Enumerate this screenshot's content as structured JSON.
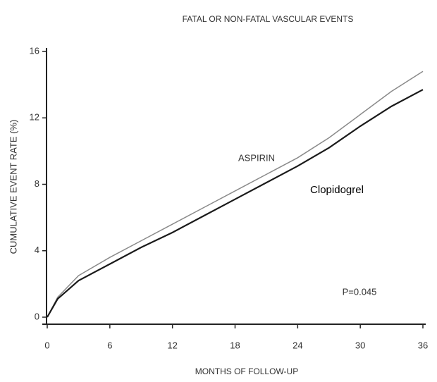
{
  "chart_data": {
    "type": "line",
    "title": "FATAL OR NON-FATAL VASCULAR EVENTS",
    "x_label": "MONTHS OF FOLLOW-UP",
    "y_label": "CUMULATIVE EVENT RATE (%)",
    "annotations": [
      "ASPIRIN",
      "Clopidogrel",
      "P=0.045"
    ],
    "x": [
      0,
      1,
      3,
      6,
      9,
      12,
      15,
      18,
      21,
      24,
      27,
      30,
      33,
      36
    ],
    "series": [
      {
        "name": "ASPIRIN",
        "color": "#8a8a8a",
        "values": [
          0,
          1.2,
          2.5,
          3.6,
          4.6,
          5.6,
          6.6,
          7.6,
          8.6,
          9.6,
          10.8,
          12.2,
          13.6,
          14.8
        ]
      },
      {
        "name": "Clopidogrel",
        "color": "#1a1a1a",
        "values": [
          0,
          1.1,
          2.2,
          3.2,
          4.2,
          5.1,
          6.1,
          7.1,
          8.1,
          9.1,
          10.2,
          11.5,
          12.7,
          13.7
        ]
      }
    ],
    "xlim": [
      0,
      36
    ],
    "xticks": [
      0,
      6,
      12,
      18,
      24,
      30,
      36
    ],
    "ylim": [
      0,
      16
    ],
    "yticks": [
      0,
      4,
      8,
      12,
      16
    ]
  }
}
